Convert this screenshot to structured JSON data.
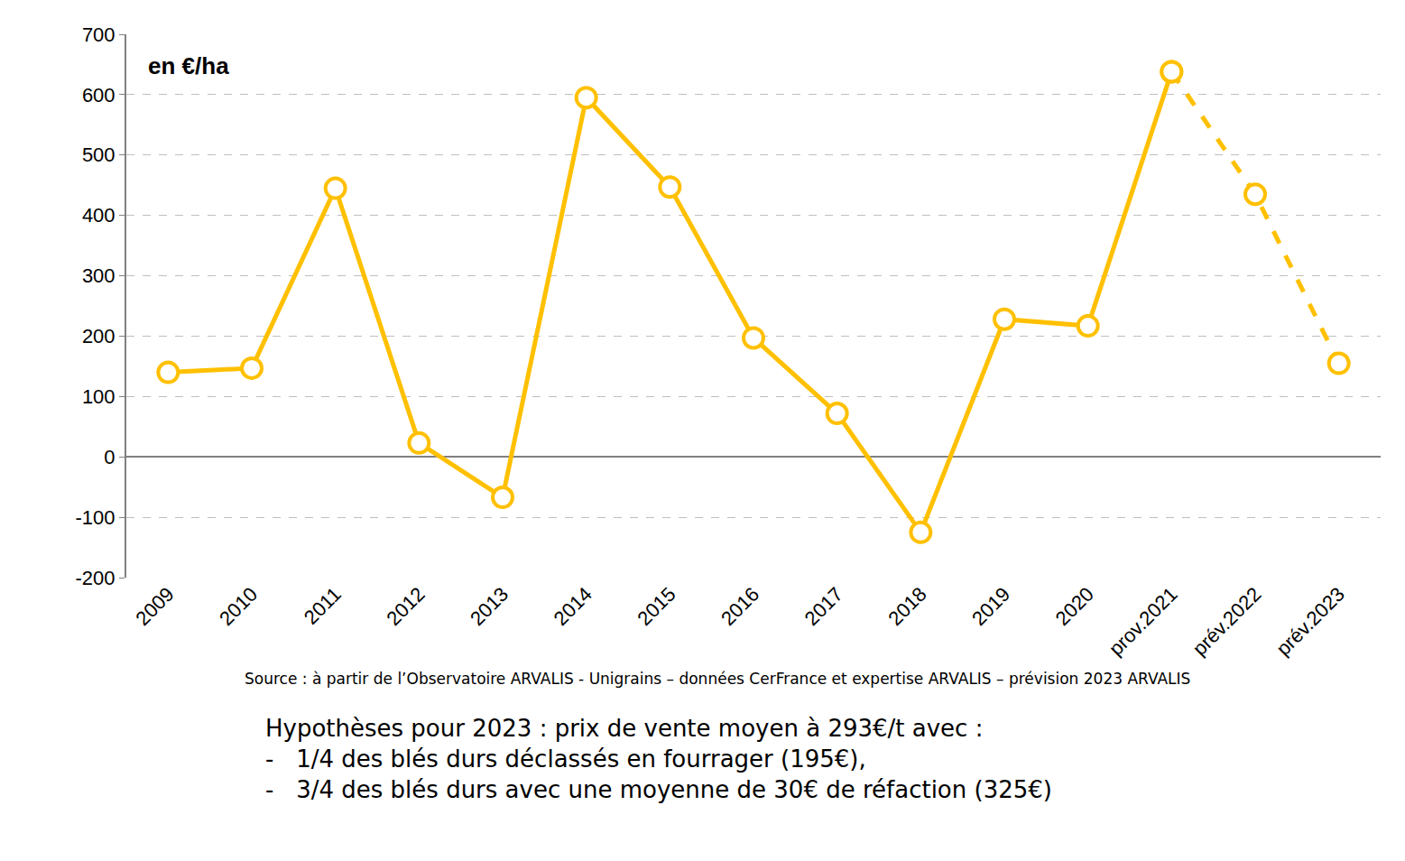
{
  "chart_data": {
    "type": "line",
    "unit_label": "en €/ha",
    "source": "Source : à partir de l’Observatoire ARVALIS - Unigrains – données CerFrance et expertise ARVALIS – prévision 2023 ARVALIS",
    "notes": [
      "Hypothèses pour 2023 : prix de vente moyen à 293€/t avec :",
      "-   1/4 des blés durs déclassés en fourrager (195€),",
      "-   3/4 des blés durs avec une moyenne de 30€ de réfaction (325€)"
    ],
    "categories": [
      "2009",
      "2010",
      "2011",
      "2012",
      "2013",
      "2014",
      "2015",
      "2016",
      "2017",
      "2018",
      "2019",
      "2020",
      "prov.2021",
      "prév.2022",
      "prév.2023"
    ],
    "series": [
      {
        "color": "#FFC000",
        "line_style": "solid",
        "marker": "open_circle",
        "values": [
          140,
          147,
          445,
          23,
          -67,
          595,
          447,
          197,
          72,
          -125,
          228,
          217,
          638,
          null,
          null
        ]
      },
      {
        "color": "#FFC000",
        "line_style": "dashed",
        "marker": "open_circle",
        "values": [
          null,
          null,
          null,
          null,
          null,
          null,
          null,
          null,
          null,
          null,
          null,
          null,
          638,
          435,
          155
        ]
      }
    ],
    "ylim": [
      -200,
      700
    ],
    "yticks": [
      -200,
      -100,
      0,
      100,
      200,
      300,
      400,
      500,
      600,
      700
    ],
    "grid": true
  }
}
